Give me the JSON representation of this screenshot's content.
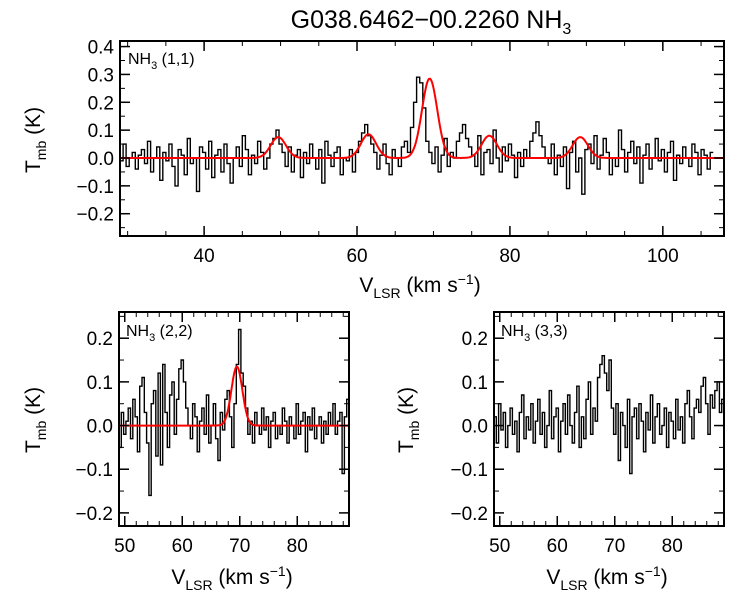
{
  "figure_title": {
    "main": "G038.6462−00.2260 NH",
    "sub": "3"
  },
  "chart_data": [
    {
      "type": "line",
      "panel": "NH3 (1,1)",
      "label": {
        "base": "NH",
        "sub": "3",
        "rest": " (1,1)"
      },
      "xlabel": {
        "base": "V",
        "sub": "LSR",
        "rest": " (km s",
        "sup": "−1",
        "end": ")"
      },
      "ylabel": {
        "base": "T",
        "sub": "mb",
        "rest": " (K)"
      },
      "xlim": [
        29,
        108
      ],
      "ylim": [
        -0.28,
        0.42
      ],
      "xticks": [
        40,
        60,
        80,
        100
      ],
      "yticks": [
        -0.2,
        -0.1,
        0.0,
        0.1,
        0.2,
        0.3,
        0.4
      ],
      "series": [
        {
          "name": "spectrum",
          "style": "histogram",
          "color": "#000000",
          "x_start": 29,
          "x_step": 0.4,
          "values": [
            -0.01,
            0.05,
            -0.03,
            0.0,
            0.02,
            -0.04,
            0.01,
            0.03,
            -0.02,
            0.06,
            -0.05,
            0.0,
            0.04,
            -0.08,
            0.02,
            -0.01,
            0.05,
            -0.03,
            -0.1,
            0.03,
            0.01,
            -0.06,
            0.07,
            -0.02,
            0.0,
            -0.12,
            0.04,
            0.02,
            -0.04,
            0.06,
            -0.07,
            0.01,
            0.03,
            -0.05,
            0.05,
            -0.02,
            -0.09,
            0.0,
            0.04,
            -0.03,
            0.08,
            0.03,
            -0.06,
            0.01,
            -0.02,
            0.06,
            0.02,
            -0.04,
            0.0,
            0.05,
            0.07,
            0.1,
            0.05,
            0.02,
            -0.03,
            0.04,
            -0.05,
            0.01,
            0.03,
            -0.07,
            0.02,
            -0.02,
            0.05,
            0.0,
            -0.04,
            0.03,
            -0.09,
            0.06,
            0.01,
            -0.03,
            0.02,
            0.04,
            -0.06,
            0.0,
            -0.01,
            0.03,
            -0.05,
            0.02,
            0.06,
            0.09,
            0.12,
            0.08,
            0.05,
            0.02,
            -0.04,
            0.01,
            0.05,
            -0.02,
            -0.06,
            0.03,
            0.0,
            -0.03,
            0.04,
            0.06,
            0.02,
            0.11,
            0.2,
            0.29,
            0.27,
            0.18,
            0.06,
            0.02,
            -0.02,
            0.04,
            -0.05,
            0.01,
            0.07,
            -0.03,
            0.02,
            0.0,
            0.06,
            0.09,
            0.12,
            0.07,
            0.04,
            0.01,
            -0.03,
            0.08,
            -0.06,
            0.02,
            0.03,
            -0.02,
            0.1,
            0.0,
            -0.05,
            0.04,
            -0.01,
            0.05,
            0.01,
            -0.07,
            0.02,
            -0.03,
            0.03,
            0.0,
            0.06,
            0.09,
            0.13,
            0.08,
            0.04,
            0.0,
            -0.02,
            0.05,
            -0.06,
            0.01,
            -0.03,
            0.04,
            -0.11,
            0.02,
            0.06,
            -0.05,
            0.0,
            -0.13,
            0.03,
            0.05,
            -0.02,
            0.08,
            -0.04,
            0.01,
            0.07,
            0.02,
            -0.06,
            0.0,
            -0.03,
            0.1,
            0.03,
            -0.05,
            0.02,
            0.06,
            -0.02,
            0.04,
            -0.09,
            0.01,
            0.05,
            -0.04,
            0.0,
            0.07,
            -0.01,
            0.03,
            -0.05,
            0.02,
            0.06,
            -0.08,
            0.01,
            -0.02,
            0.04,
            0.0,
            -0.03,
            0.05,
            0.02,
            -0.06,
            0.03,
            0.01,
            -0.04,
            0.02
          ]
        },
        {
          "name": "fit",
          "style": "line",
          "color": "#ff0000",
          "gaussians": [
            {
              "center": 49.7,
              "amplitude": 0.075,
              "sigma": 1.0
            },
            {
              "center": 61.5,
              "amplitude": 0.085,
              "sigma": 1.0
            },
            {
              "center": 69.5,
              "amplitude": 0.285,
              "sigma": 1.0
            },
            {
              "center": 77.3,
              "amplitude": 0.08,
              "sigma": 1.0
            },
            {
              "center": 89.2,
              "amplitude": 0.075,
              "sigma": 1.0
            }
          ]
        }
      ]
    },
    {
      "type": "line",
      "panel": "NH3 (2,2)",
      "label": {
        "base": "NH",
        "sub": "3",
        "rest": " (2,2)"
      },
      "xlabel": {
        "base": "V",
        "sub": "LSR",
        "rest": " (km s",
        "sup": "−1",
        "end": ")"
      },
      "ylabel": {
        "base": "T",
        "sub": "mb",
        "rest": " (K)"
      },
      "xlim": [
        49,
        89
      ],
      "ylim": [
        -0.23,
        0.26
      ],
      "xticks": [
        50,
        60,
        70,
        80
      ],
      "yticks": [
        -0.2,
        -0.1,
        0.0,
        0.1,
        0.2
      ],
      "series": [
        {
          "name": "spectrum",
          "style": "histogram",
          "color": "#000000",
          "x_start": 49,
          "x_step": 0.4,
          "values": [
            -0.05,
            0.03,
            -0.02,
            0.01,
            0.04,
            -0.03,
            0.06,
            0.02,
            -0.06,
            0.09,
            0.11,
            0.03,
            -0.04,
            -0.16,
            0.05,
            0.08,
            -0.07,
            0.12,
            -0.09,
            0.14,
            0.03,
            -0.05,
            0.07,
            0.1,
            -0.02,
            0.06,
            0.13,
            0.15,
            0.1,
            0.04,
            0.0,
            -0.03,
            0.05,
            0.02,
            -0.06,
            0.01,
            0.04,
            -0.02,
            0.07,
            -0.04,
            0.0,
            0.05,
            -0.03,
            -0.08,
            0.03,
            -0.01,
            0.06,
            0.08,
            0.02,
            -0.05,
            0.05,
            0.14,
            0.22,
            0.12,
            0.09,
            0.04,
            -0.02,
            0.01,
            -0.04,
            0.03,
            0.0,
            -0.02,
            0.04,
            -0.01,
            0.02,
            -0.05,
            0.01,
            0.03,
            -0.03,
            0.0,
            -0.02,
            0.04,
            0.01,
            -0.04,
            0.02,
            0.0,
            -0.03,
            0.05,
            -0.02,
            0.01,
            0.03,
            -0.06,
            0.02,
            -0.01,
            0.04,
            -0.03,
            0.0,
            0.02,
            -0.04,
            0.01,
            -0.02,
            0.03,
            0.0,
            0.05,
            -0.02,
            0.01,
            0.03,
            -0.11,
            0.02,
            0.06
          ]
        },
        {
          "name": "fit",
          "style": "line",
          "color": "#ff0000",
          "gaussians": [
            {
              "center": 69.5,
              "amplitude": 0.135,
              "sigma": 0.95
            }
          ]
        }
      ]
    },
    {
      "type": "line",
      "panel": "NH3 (3,3)",
      "label": {
        "base": "NH",
        "sub": "3",
        "rest": " (3,3)"
      },
      "xlabel": {
        "base": "V",
        "sub": "LSR",
        "rest": " (km s",
        "sup": "−1",
        "end": ")"
      },
      "ylabel": {
        "base": "T",
        "sub": "mb",
        "rest": " (K)"
      },
      "xlim": [
        49,
        89
      ],
      "ylim": [
        -0.23,
        0.26
      ],
      "xticks": [
        50,
        60,
        70,
        80
      ],
      "yticks": [
        -0.2,
        -0.1,
        0.0,
        0.1,
        0.2
      ],
      "series": [
        {
          "name": "spectrum",
          "style": "histogram",
          "color": "#000000",
          "x_start": 49,
          "x_step": 0.4,
          "values": [
            0.02,
            -0.04,
            0.05,
            -0.01,
            0.03,
            -0.05,
            0.0,
            0.04,
            -0.02,
            0.01,
            -0.06,
            0.03,
            0.07,
            -0.03,
            0.02,
            -0.01,
            0.05,
            -0.04,
            0.01,
            0.06,
            -0.02,
            0.03,
            -0.05,
            0.0,
            0.08,
            -0.03,
            0.02,
            0.04,
            -0.06,
            0.01,
            0.05,
            -0.02,
            0.07,
            0.0,
            -0.04,
            0.03,
            0.09,
            -0.05,
            0.02,
            -0.03,
            0.06,
            0.1,
            -0.02,
            0.04,
            0.01,
            0.11,
            0.14,
            0.16,
            0.12,
            0.08,
            0.15,
            0.04,
            -0.02,
            0.05,
            -0.08,
            0.03,
            0.0,
            -0.05,
            0.06,
            -0.11,
            0.02,
            0.04,
            -0.03,
            0.05,
            0.01,
            -0.06,
            0.03,
            -0.01,
            0.07,
            -0.04,
            0.02,
            0.05,
            -0.02,
            0.0,
            0.04,
            -0.05,
            0.03,
            0.01,
            -0.03,
            0.06,
            -0.01,
            0.02,
            -0.04,
            0.05,
            0.08,
            0.02,
            -0.03,
            0.04,
            0.06,
            0.03,
            0.09,
            0.11,
            0.05,
            -0.02,
            0.07,
            0.04,
            0.08,
            0.1,
            0.03,
            0.06
          ]
        }
      ]
    }
  ]
}
